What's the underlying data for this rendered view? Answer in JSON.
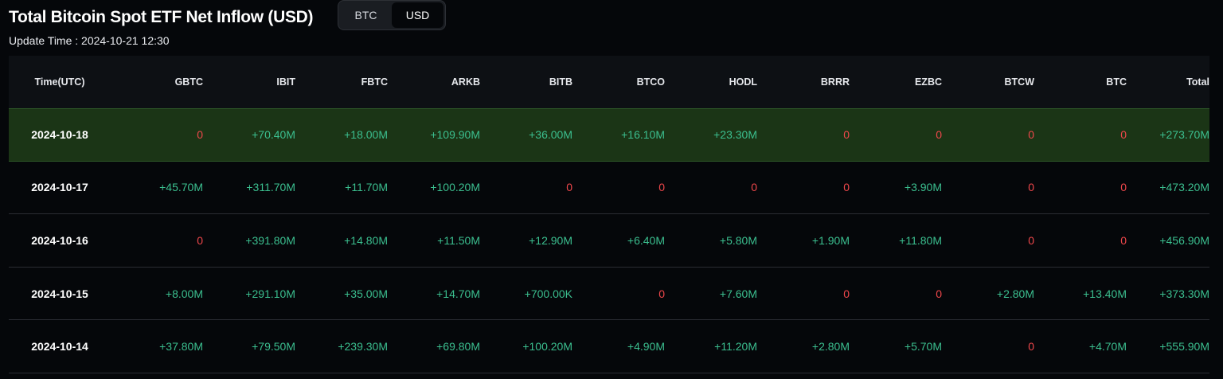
{
  "header": {
    "title": "Total Bitcoin Spot ETF Net Inflow (USD)",
    "update_time": "Update Time : 2024-10-21 12:30",
    "toggle": {
      "options": [
        "BTC",
        "USD"
      ],
      "selected": "USD"
    }
  },
  "colors": {
    "positive": "#3bbf8f",
    "zero": "#f0474b",
    "highlight_row": "#1b3516",
    "background": "#05070a"
  },
  "table": {
    "columns": [
      "Time(UTC)",
      "GBTC",
      "IBIT",
      "FBTC",
      "ARKB",
      "BITB",
      "BTCO",
      "HODL",
      "BRRR",
      "EZBC",
      "BTCW",
      "BTC",
      "Total"
    ],
    "rows": [
      [
        "2024-10-18",
        "0",
        "+70.40M",
        "+18.00M",
        "+109.90M",
        "+36.00M",
        "+16.10M",
        "+23.30M",
        "0",
        "0",
        "0",
        "0",
        "+273.70M"
      ],
      [
        "2024-10-17",
        "+45.70M",
        "+311.70M",
        "+11.70M",
        "+100.20M",
        "0",
        "0",
        "0",
        "0",
        "+3.90M",
        "0",
        "0",
        "+473.20M"
      ],
      [
        "2024-10-16",
        "0",
        "+391.80M",
        "+14.80M",
        "+11.50M",
        "+12.90M",
        "+6.40M",
        "+5.80M",
        "+1.90M",
        "+11.80M",
        "0",
        "0",
        "+456.90M"
      ],
      [
        "2024-10-15",
        "+8.00M",
        "+291.10M",
        "+35.00M",
        "+14.70M",
        "+700.00K",
        "0",
        "+7.60M",
        "0",
        "0",
        "+2.80M",
        "+13.40M",
        "+373.30M"
      ],
      [
        "2024-10-14",
        "+37.80M",
        "+79.50M",
        "+239.30M",
        "+69.80M",
        "+100.20M",
        "+4.90M",
        "+11.20M",
        "+2.80M",
        "+5.70M",
        "0",
        "+4.70M",
        "+555.90M"
      ]
    ],
    "highlighted_row": "2024-10-18"
  }
}
